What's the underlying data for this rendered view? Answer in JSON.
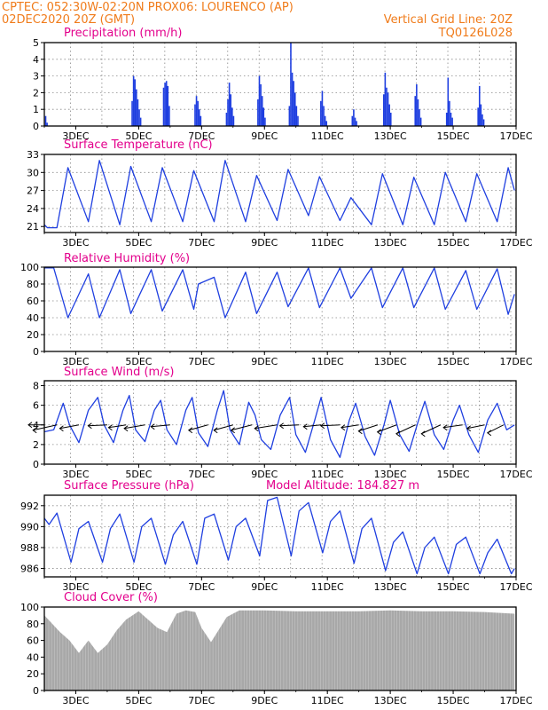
{
  "header": {
    "line1_left": "CPTEC:   052:30W-02:20N   PROX06: LOURENCO (AP)",
    "line2_left": "02DEC2020 20Z (GMT)",
    "line2_right": "Vertical Grid Line: 20Z",
    "line3_right": "TQ0126L028"
  },
  "colors": {
    "header": "#f07b1a",
    "panel_title": "#e3008c",
    "series": "#1f3fe0",
    "cloud": "#a8a8a8",
    "grid": "#888888"
  },
  "chart_data": [
    {
      "id": "precip",
      "type": "bar",
      "title": "Precipitation  (mm/h)",
      "x_ticks": [
        "3DEC",
        "5DEC",
        "7DEC",
        "9DEC",
        "11DEC",
        "13DEC",
        "15DEC",
        "17DEC"
      ],
      "ylim": [
        0,
        5
      ],
      "y_ticks": [
        0,
        1,
        2,
        3,
        4,
        5
      ],
      "grid": true,
      "bursts": [
        {
          "day": 2.02,
          "values": [
            0.6,
            0.2
          ]
        },
        {
          "day": 4.77,
          "values": [
            1.5,
            3.0,
            2.8,
            2.2,
            1.6,
            1.0,
            0.5
          ]
        },
        {
          "day": 5.77,
          "values": [
            2.3,
            2.6,
            2.7,
            2.4,
            1.2
          ]
        },
        {
          "day": 6.77,
          "values": [
            1.3,
            1.8,
            1.5,
            1.0,
            0.6
          ]
        },
        {
          "day": 7.77,
          "values": [
            0.8,
            1.6,
            2.6,
            1.9,
            1.1,
            0.6
          ]
        },
        {
          "day": 8.77,
          "values": [
            1.6,
            3.0,
            2.5,
            1.8,
            1.1,
            0.5
          ]
        },
        {
          "day": 9.77,
          "values": [
            1.2,
            5.0,
            3.2,
            2.7,
            2.0,
            1.2,
            0.6
          ]
        },
        {
          "day": 10.77,
          "values": [
            1.5,
            2.1,
            1.2,
            0.6,
            0.3
          ]
        },
        {
          "day": 11.77,
          "values": [
            0.6,
            1.0,
            0.5,
            0.3
          ]
        },
        {
          "day": 12.77,
          "values": [
            1.9,
            3.2,
            2.3,
            2.0,
            1.3,
            0.8
          ]
        },
        {
          "day": 13.77,
          "values": [
            1.8,
            2.5,
            1.6,
            1.0,
            0.5
          ]
        },
        {
          "day": 14.77,
          "values": [
            0.8,
            2.9,
            1.5,
            0.8,
            0.5
          ]
        },
        {
          "day": 15.77,
          "values": [
            1.1,
            2.4,
            1.3,
            0.7,
            0.4
          ]
        }
      ]
    },
    {
      "id": "temp",
      "type": "line",
      "title": "Surface Temperature (nC)",
      "x_ticks": [
        "3DEC",
        "5DEC",
        "7DEC",
        "9DEC",
        "11DEC",
        "13DEC",
        "15DEC",
        "17DEC"
      ],
      "ylim": [
        20,
        33
      ],
      "y_ticks": [
        21,
        24,
        27,
        30,
        33
      ],
      "grid": true,
      "points": [
        [
          2.0,
          21.3
        ],
        [
          2.1,
          20.8
        ],
        [
          2.4,
          20.8
        ],
        [
          2.75,
          30.8
        ],
        [
          3.4,
          21.8
        ],
        [
          3.75,
          32.0
        ],
        [
          4.4,
          21.3
        ],
        [
          4.75,
          31.0
        ],
        [
          5.4,
          21.8
        ],
        [
          5.75,
          30.8
        ],
        [
          6.4,
          21.8
        ],
        [
          6.75,
          30.3
        ],
        [
          7.4,
          21.8
        ],
        [
          7.75,
          32.0
        ],
        [
          8.4,
          21.8
        ],
        [
          8.75,
          29.5
        ],
        [
          9.4,
          22.0
        ],
        [
          9.75,
          30.5
        ],
        [
          10.4,
          22.8
        ],
        [
          10.75,
          29.3
        ],
        [
          11.4,
          22.0
        ],
        [
          11.75,
          25.8
        ],
        [
          12.4,
          21.3
        ],
        [
          12.75,
          29.8
        ],
        [
          13.4,
          21.3
        ],
        [
          13.75,
          29.2
        ],
        [
          14.4,
          21.3
        ],
        [
          14.75,
          30.0
        ],
        [
          15.4,
          21.8
        ],
        [
          15.75,
          29.8
        ],
        [
          16.4,
          21.8
        ],
        [
          16.75,
          30.8
        ],
        [
          16.95,
          27.0
        ]
      ]
    },
    {
      "id": "rh",
      "type": "line",
      "title": "Relative Humidity (%)",
      "x_ticks": [
        "3DEC",
        "5DEC",
        "7DEC",
        "9DEC",
        "11DEC",
        "13DEC",
        "15DEC",
        "17DEC"
      ],
      "ylim": [
        0,
        100
      ],
      "y_ticks": [
        0,
        20,
        40,
        60,
        80,
        100
      ],
      "grid": true,
      "points": [
        [
          2.0,
          99
        ],
        [
          2.1,
          99
        ],
        [
          2.3,
          99
        ],
        [
          2.75,
          40
        ],
        [
          3.4,
          92
        ],
        [
          3.75,
          40
        ],
        [
          4.4,
          97
        ],
        [
          4.75,
          45
        ],
        [
          5.4,
          97
        ],
        [
          5.75,
          48
        ],
        [
          6.4,
          97
        ],
        [
          6.75,
          50
        ],
        [
          6.9,
          80
        ],
        [
          7.4,
          88
        ],
        [
          7.75,
          40
        ],
        [
          8.4,
          94
        ],
        [
          8.75,
          45
        ],
        [
          9.4,
          94
        ],
        [
          9.75,
          53
        ],
        [
          10.4,
          99
        ],
        [
          10.75,
          52
        ],
        [
          11.4,
          99
        ],
        [
          11.75,
          63
        ],
        [
          12.4,
          99
        ],
        [
          12.75,
          52
        ],
        [
          13.4,
          99
        ],
        [
          13.75,
          52
        ],
        [
          14.4,
          99
        ],
        [
          14.75,
          50
        ],
        [
          15.4,
          96
        ],
        [
          15.75,
          50
        ],
        [
          16.4,
          98
        ],
        [
          16.75,
          44
        ],
        [
          16.95,
          68
        ]
      ]
    },
    {
      "id": "wind",
      "type": "line",
      "title": "Surface Wind (m/s)",
      "x_ticks": [
        "3DEC",
        "5DEC",
        "7DEC",
        "9DEC",
        "11DEC",
        "13DEC",
        "15DEC",
        "17DEC"
      ],
      "ylim": [
        0,
        8.5
      ],
      "y_ticks": [
        0,
        2,
        4,
        6,
        8
      ],
      "grid": true,
      "points": [
        [
          2.0,
          3.3
        ],
        [
          2.3,
          3.5
        ],
        [
          2.6,
          6.2
        ],
        [
          2.8,
          4.0
        ],
        [
          3.1,
          2.2
        ],
        [
          3.4,
          5.5
        ],
        [
          3.7,
          6.8
        ],
        [
          3.9,
          4.0
        ],
        [
          4.2,
          2.2
        ],
        [
          4.5,
          5.5
        ],
        [
          4.7,
          7.0
        ],
        [
          4.9,
          3.5
        ],
        [
          5.2,
          2.3
        ],
        [
          5.5,
          5.5
        ],
        [
          5.7,
          6.5
        ],
        [
          5.9,
          3.5
        ],
        [
          6.2,
          2.0
        ],
        [
          6.5,
          5.5
        ],
        [
          6.7,
          6.8
        ],
        [
          6.9,
          3.2
        ],
        [
          7.2,
          1.8
        ],
        [
          7.5,
          5.5
        ],
        [
          7.7,
          7.5
        ],
        [
          7.9,
          3.5
        ],
        [
          8.2,
          2.0
        ],
        [
          8.5,
          6.3
        ],
        [
          8.7,
          5.0
        ],
        [
          8.9,
          2.5
        ],
        [
          9.2,
          1.5
        ],
        [
          9.5,
          5.0
        ],
        [
          9.8,
          6.8
        ],
        [
          10.0,
          3.0
        ],
        [
          10.3,
          1.2
        ],
        [
          10.6,
          4.5
        ],
        [
          10.8,
          6.8
        ],
        [
          11.1,
          2.5
        ],
        [
          11.4,
          0.7
        ],
        [
          11.7,
          4.5
        ],
        [
          11.9,
          6.2
        ],
        [
          12.2,
          2.8
        ],
        [
          12.5,
          0.9
        ],
        [
          12.8,
          4.0
        ],
        [
          13.0,
          6.5
        ],
        [
          13.3,
          3.0
        ],
        [
          13.6,
          1.3
        ],
        [
          13.9,
          4.5
        ],
        [
          14.1,
          6.4
        ],
        [
          14.4,
          3.0
        ],
        [
          14.7,
          1.5
        ],
        [
          15.0,
          4.5
        ],
        [
          15.2,
          6.0
        ],
        [
          15.5,
          3.0
        ],
        [
          15.8,
          1.2
        ],
        [
          16.1,
          4.5
        ],
        [
          16.4,
          6.2
        ],
        [
          16.7,
          3.5
        ],
        [
          16.95,
          4.0
        ]
      ],
      "wind_barbs": [
        {
          "day": 2.0,
          "dx": -10,
          "dy": 0
        },
        {
          "day": 2.4,
          "dx": -15,
          "dy": 6
        },
        {
          "day": 3.1,
          "dx": -12,
          "dy": 4
        },
        {
          "day": 4.0,
          "dx": -12,
          "dy": 1
        },
        {
          "day": 4.6,
          "dx": -11,
          "dy": 3
        },
        {
          "day": 5.2,
          "dx": -13,
          "dy": 4
        },
        {
          "day": 6.0,
          "dx": -12,
          "dy": 2
        },
        {
          "day": 7.2,
          "dx": -12,
          "dy": 6
        },
        {
          "day": 8.0,
          "dx": -12,
          "dy": 6
        },
        {
          "day": 8.6,
          "dx": -13,
          "dy": 6
        },
        {
          "day": 9.4,
          "dx": -14,
          "dy": 4
        },
        {
          "day": 10.1,
          "dx": -12,
          "dy": 1
        },
        {
          "day": 10.8,
          "dx": -11,
          "dy": 2
        },
        {
          "day": 11.4,
          "dx": -12,
          "dy": 1
        },
        {
          "day": 12.0,
          "dx": -11,
          "dy": 3
        },
        {
          "day": 12.6,
          "dx": -12,
          "dy": 7
        },
        {
          "day": 13.2,
          "dx": -12,
          "dy": 8
        },
        {
          "day": 13.8,
          "dx": -12,
          "dy": 10
        },
        {
          "day": 14.6,
          "dx": -12,
          "dy": 10
        },
        {
          "day": 15.3,
          "dx": -12,
          "dy": 3
        },
        {
          "day": 16.0,
          "dx": -11,
          "dy": 4
        },
        {
          "day": 16.6,
          "dx": -10,
          "dy": 9
        }
      ]
    },
    {
      "id": "pressure",
      "type": "line",
      "title": "Surface Pressure (hPa)",
      "annotation": "Model Altitude: 184.827 m",
      "x_ticks": [
        "3DEC",
        "5DEC",
        "7DEC",
        "9DEC",
        "11DEC",
        "13DEC",
        "15DEC",
        "17DEC"
      ],
      "ylim": [
        985.2,
        993
      ],
      "y_ticks": [
        986,
        988,
        990,
        992
      ],
      "grid": true,
      "points": [
        [
          2.0,
          990.8
        ],
        [
          2.15,
          990.2
        ],
        [
          2.4,
          991.3
        ],
        [
          2.85,
          986.6
        ],
        [
          3.1,
          989.8
        ],
        [
          3.4,
          990.5
        ],
        [
          3.85,
          986.6
        ],
        [
          4.1,
          989.8
        ],
        [
          4.4,
          991.2
        ],
        [
          4.85,
          986.6
        ],
        [
          5.1,
          990.0
        ],
        [
          5.4,
          990.8
        ],
        [
          5.85,
          986.4
        ],
        [
          6.1,
          989.2
        ],
        [
          6.4,
          990.5
        ],
        [
          6.85,
          986.4
        ],
        [
          7.1,
          990.8
        ],
        [
          7.4,
          991.2
        ],
        [
          7.85,
          986.8
        ],
        [
          8.1,
          990.0
        ],
        [
          8.4,
          990.8
        ],
        [
          8.85,
          987.2
        ],
        [
          9.1,
          992.5
        ],
        [
          9.4,
          992.8
        ],
        [
          9.85,
          987.2
        ],
        [
          10.1,
          991.5
        ],
        [
          10.4,
          992.3
        ],
        [
          10.85,
          987.5
        ],
        [
          11.1,
          990.5
        ],
        [
          11.4,
          991.5
        ],
        [
          11.85,
          986.5
        ],
        [
          12.1,
          989.8
        ],
        [
          12.4,
          990.8
        ],
        [
          12.85,
          985.8
        ],
        [
          13.1,
          988.5
        ],
        [
          13.4,
          989.5
        ],
        [
          13.85,
          985.5
        ],
        [
          14.1,
          988.0
        ],
        [
          14.4,
          989.0
        ],
        [
          14.85,
          985.5
        ],
        [
          15.1,
          988.3
        ],
        [
          15.4,
          989.0
        ],
        [
          15.85,
          985.5
        ],
        [
          16.1,
          987.5
        ],
        [
          16.4,
          988.8
        ],
        [
          16.85,
          985.5
        ],
        [
          16.95,
          986.0
        ]
      ]
    },
    {
      "id": "cloud",
      "type": "area",
      "title": "Cloud Cover (%)",
      "x_ticks": [
        "3DEC",
        "5DEC",
        "7DEC",
        "9DEC",
        "11DEC",
        "13DEC",
        "15DEC",
        "17DEC"
      ],
      "ylim": [
        0,
        100
      ],
      "y_ticks": [
        0,
        20,
        40,
        60,
        80,
        100
      ],
      "grid": false,
      "points": [
        [
          2.0,
          90
        ],
        [
          2.2,
          82
        ],
        [
          2.5,
          70
        ],
        [
          2.8,
          60
        ],
        [
          3.1,
          45
        ],
        [
          3.4,
          60
        ],
        [
          3.7,
          45
        ],
        [
          4.0,
          55
        ],
        [
          4.3,
          72
        ],
        [
          4.6,
          85
        ],
        [
          5.0,
          95
        ],
        [
          5.3,
          85
        ],
        [
          5.6,
          75
        ],
        [
          5.9,
          70
        ],
        [
          6.2,
          92
        ],
        [
          6.5,
          96
        ],
        [
          6.8,
          94
        ],
        [
          7.0,
          75
        ],
        [
          7.3,
          58
        ],
        [
          7.5,
          70
        ],
        [
          7.8,
          88
        ],
        [
          8.2,
          96
        ],
        [
          9.0,
          96
        ],
        [
          10.0,
          95
        ],
        [
          11.0,
          95
        ],
        [
          12.0,
          95
        ],
        [
          13.0,
          96
        ],
        [
          14.0,
          95
        ],
        [
          15.0,
          95
        ],
        [
          16.0,
          94
        ],
        [
          16.95,
          92
        ]
      ]
    }
  ]
}
